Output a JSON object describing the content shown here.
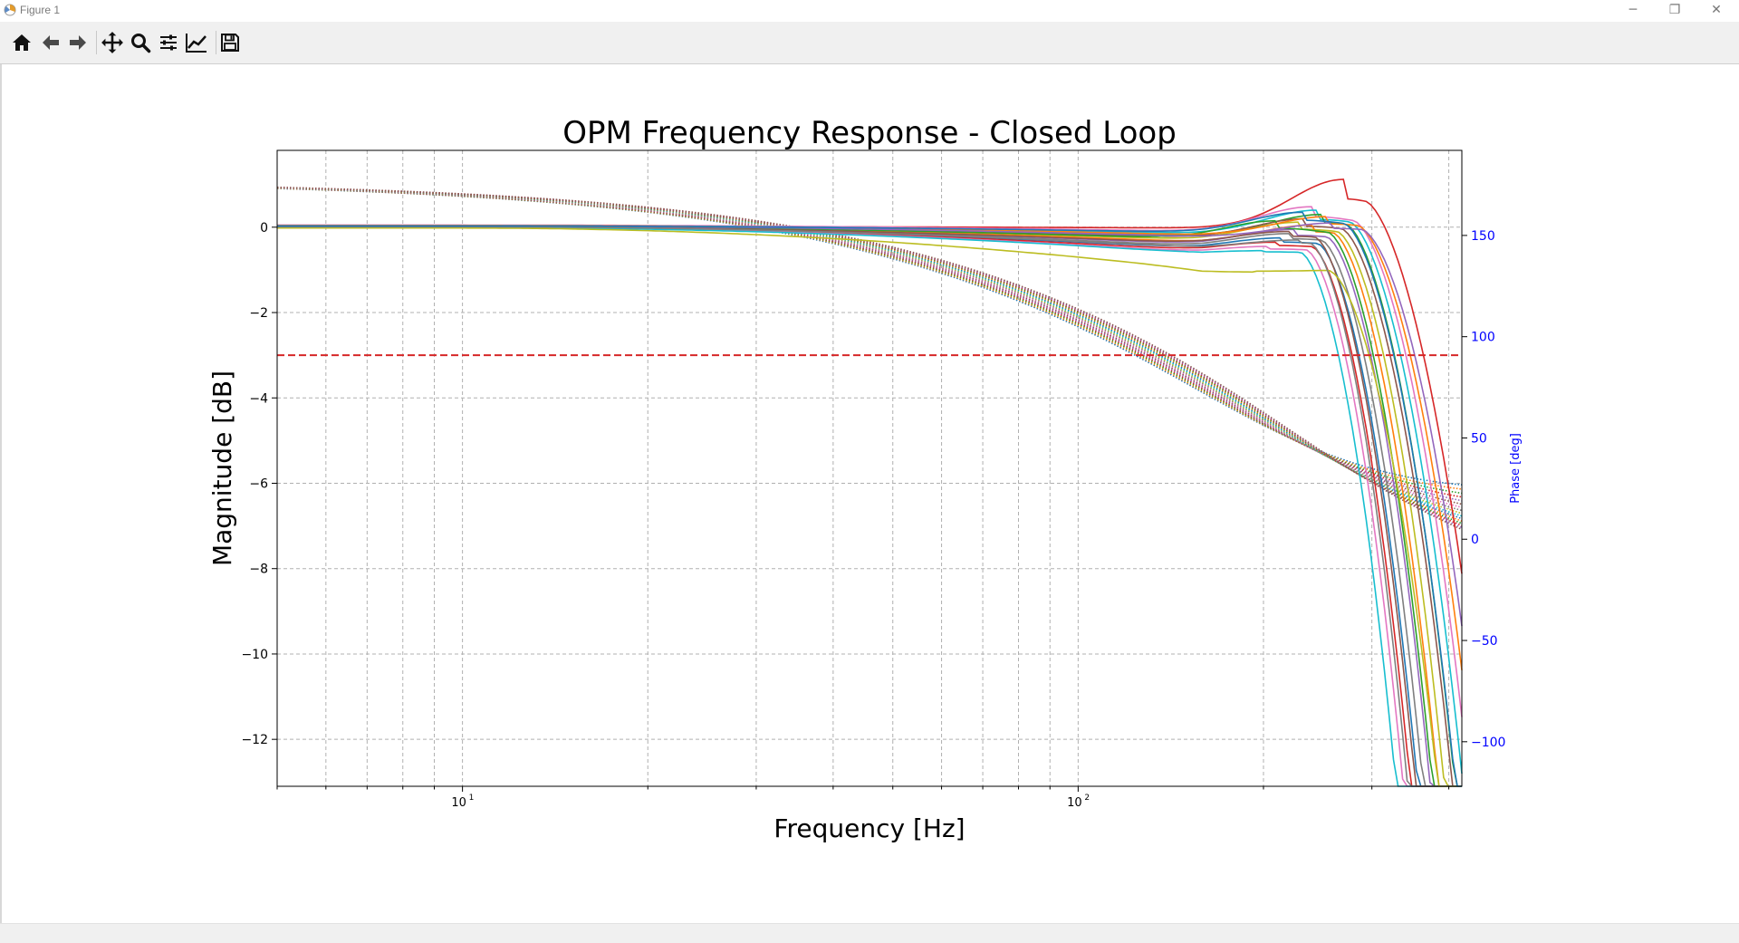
{
  "window": {
    "title": "Figure 1",
    "minimize_glyph": "─",
    "restore_glyph": "❐",
    "close_glyph": "✕"
  },
  "toolbar": {
    "tools": [
      {
        "name": "home-icon",
        "tooltip": "Home"
      },
      {
        "name": "back-icon",
        "tooltip": "Back"
      },
      {
        "name": "forward-icon",
        "tooltip": "Forward"
      },
      {
        "name": "pan-icon",
        "tooltip": "Pan"
      },
      {
        "name": "zoom-icon",
        "tooltip": "Zoom"
      },
      {
        "name": "subplots-icon",
        "tooltip": "Subplots"
      },
      {
        "name": "customize-icon",
        "tooltip": "Customize"
      },
      {
        "name": "save-icon",
        "tooltip": "Save"
      }
    ]
  },
  "colors": {
    "threshold": "#d62728",
    "phase_axis": "#0000ff",
    "grid": "#b0b0b0",
    "palette": [
      "#1f77b4",
      "#ff7f0e",
      "#2ca02c",
      "#d62728",
      "#9467bd",
      "#8c564b",
      "#e377c2",
      "#7f7f7f",
      "#bcbd22",
      "#17becf"
    ]
  },
  "chart_data": {
    "type": "line",
    "title": "OPM Frequency Response - Closed Loop",
    "xlabel": "Frequency [Hz]",
    "ylabel": "Magnitude [dB]",
    "y2label": "Phase [deg]",
    "xscale": "log",
    "xlim": [
      5,
      420
    ],
    "ylim": [
      -13.1,
      1.8
    ],
    "y2lim": [
      -122,
      192
    ],
    "xticks_major": [
      {
        "value": 10,
        "label": "10",
        "exp": "1"
      },
      {
        "value": 100,
        "label": "10",
        "exp": "2"
      }
    ],
    "yticks": [
      {
        "value": 0,
        "label": "0"
      },
      {
        "value": -2,
        "label": "−2"
      },
      {
        "value": -4,
        "label": "−4"
      },
      {
        "value": -6,
        "label": "−6"
      },
      {
        "value": -8,
        "label": "−8"
      },
      {
        "value": -10,
        "label": "−10"
      },
      {
        "value": -12,
        "label": "−12"
      }
    ],
    "y2ticks": [
      {
        "value": 150,
        "label": "150"
      },
      {
        "value": 100,
        "label": "100"
      },
      {
        "value": 50,
        "label": "50"
      },
      {
        "value": 0,
        "label": "0"
      },
      {
        "value": -50,
        "label": "−50"
      },
      {
        "value": -100,
        "label": "−100"
      }
    ],
    "grid": true,
    "threshold_db": -3,
    "magnitude_series": [
      {
        "f_peak": 270,
        "peak": 1.12,
        "low": 0.02,
        "mid": -0.02,
        "cutoff": 345,
        "roll": 2.6
      },
      {
        "f_peak": 240,
        "peak": 0.48,
        "low": 0.05,
        "mid": -0.1,
        "cutoff": 330,
        "roll": 2.9
      },
      {
        "f_peak": 245,
        "peak": 0.4,
        "low": 0.04,
        "mid": -0.15,
        "cutoff": 325,
        "roll": 3.0
      },
      {
        "f_peak": 250,
        "peak": 0.3,
        "low": 0.03,
        "mid": -0.2,
        "cutoff": 320,
        "roll": 3.2
      },
      {
        "f_peak": 235,
        "peak": 0.2,
        "low": 0.03,
        "mid": -0.25,
        "cutoff": 315,
        "roll": 3.1
      },
      {
        "f_peak": 230,
        "peak": 0.12,
        "low": 0.02,
        "mid": -0.3,
        "cutoff": 310,
        "roll": 3.3
      },
      {
        "f_peak": 240,
        "peak": 0.05,
        "low": 0.02,
        "mid": -0.35,
        "cutoff": 305,
        "roll": 3.4
      },
      {
        "f_peak": 225,
        "peak": -0.05,
        "low": 0.01,
        "mid": -0.4,
        "cutoff": 298,
        "roll": 3.5
      },
      {
        "f_peak": 220,
        "peak": -0.15,
        "low": 0.01,
        "mid": -0.45,
        "cutoff": 292,
        "roll": 3.6
      },
      {
        "f_peak": 215,
        "peak": -0.25,
        "low": 0.0,
        "mid": -0.5,
        "cutoff": 288,
        "roll": 3.7
      },
      {
        "f_peak": 210,
        "peak": -0.35,
        "low": 0.0,
        "mid": -0.55,
        "cutoff": 282,
        "roll": 3.8
      },
      {
        "f_peak": 205,
        "peak": -0.45,
        "low": 0.0,
        "mid": -0.6,
        "cutoff": 276,
        "roll": 3.9
      },
      {
        "f_peak": 200,
        "peak": -0.55,
        "low": -0.01,
        "mid": -0.62,
        "cutoff": 270,
        "roll": 4.0
      },
      {
        "f_peak": 210,
        "peak": 0.15,
        "low": 0.02,
        "mid": -0.28,
        "cutoff": 300,
        "roll": 3.5
      },
      {
        "f_peak": 220,
        "peak": -0.1,
        "low": 0.01,
        "mid": -0.38,
        "cutoff": 285,
        "roll": 3.7
      },
      {
        "f_peak": 195,
        "peak": -1.05,
        "low": -0.02,
        "mid": -1.0,
        "cutoff": 300,
        "roll": 3.0
      },
      {
        "f_peak": 255,
        "peak": 0.25,
        "low": 0.04,
        "mid": -0.18,
        "cutoff": 335,
        "roll": 2.8
      },
      {
        "f_peak": 260,
        "peak": 0.1,
        "low": 0.03,
        "mid": -0.22,
        "cutoff": 340,
        "roll": 2.7
      },
      {
        "f_peak": 228,
        "peak": -0.3,
        "low": 0.01,
        "mid": -0.48,
        "cutoff": 280,
        "roll": 3.9
      },
      {
        "f_peak": 232,
        "peak": 0.35,
        "low": 0.03,
        "mid": -0.12,
        "cutoff": 318,
        "roll": 3.1
      }
    ],
    "phase_series": {
      "count": 16,
      "start_deg": 177,
      "corner_hz": 120,
      "spread_deg": 9
    }
  }
}
